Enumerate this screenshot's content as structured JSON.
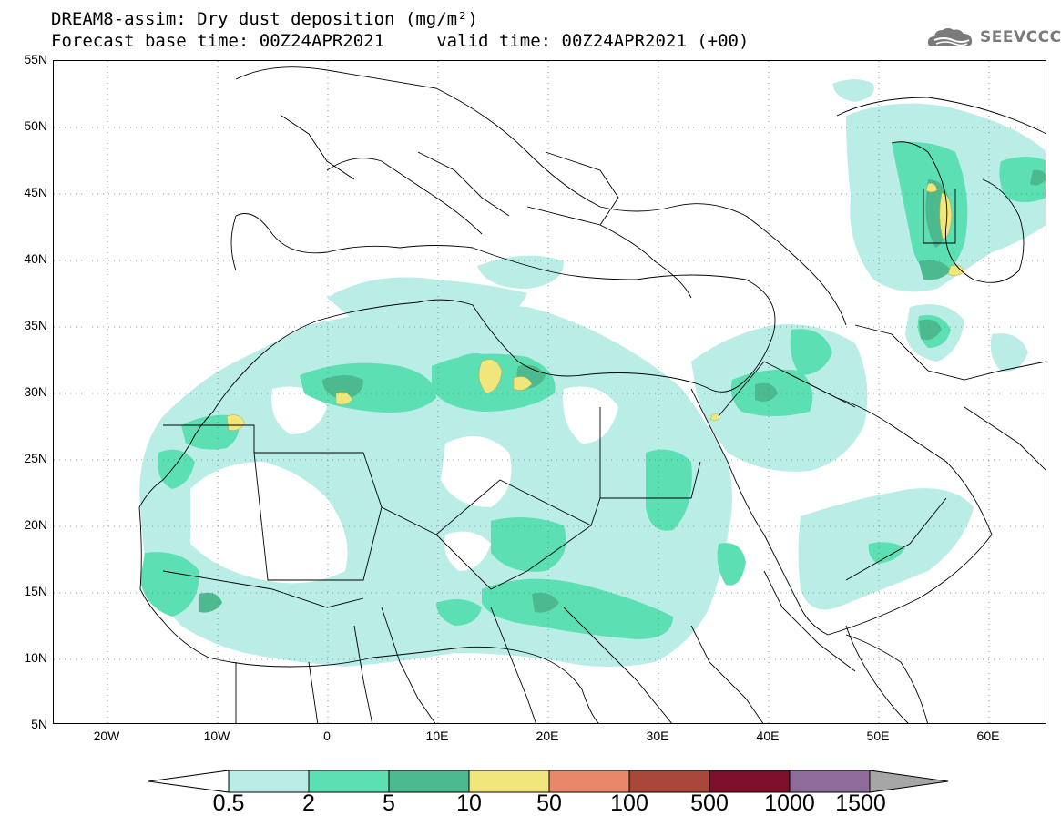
{
  "header": {
    "title_line1": "DREAM8-assim: Dry dust deposition (mg/m²)",
    "title_line2": "Forecast base time: 00Z24APR2021     valid time: 00Z24APR2021 (+00)"
  },
  "logo": {
    "text": "SEEVCCC",
    "icon": "cloud-logo-icon"
  },
  "map": {
    "lon_labels": [
      "20W",
      "10W",
      "0",
      "10E",
      "20E",
      "30E",
      "40E",
      "50E",
      "60E"
    ],
    "lat_labels": [
      "55N",
      "50N",
      "45N",
      "40N",
      "35N",
      "30N",
      "25N",
      "20N",
      "15N",
      "10N",
      "5N"
    ],
    "extent": {
      "lon_min": -25,
      "lon_max": 65,
      "lat_min": 5,
      "lat_max": 55
    }
  },
  "legend": {
    "labels": [
      "0.5",
      "2",
      "5",
      "10",
      "50",
      "100",
      "500",
      "1000",
      "1500"
    ],
    "colors": [
      "#ffffff",
      "#b9ede6",
      "#5ddfb4",
      "#4cb98e",
      "#f0e67c",
      "#e8876a",
      "#a8473a",
      "#7c0f2a",
      "#8d6c9a",
      "#a6a6a6"
    ]
  }
}
